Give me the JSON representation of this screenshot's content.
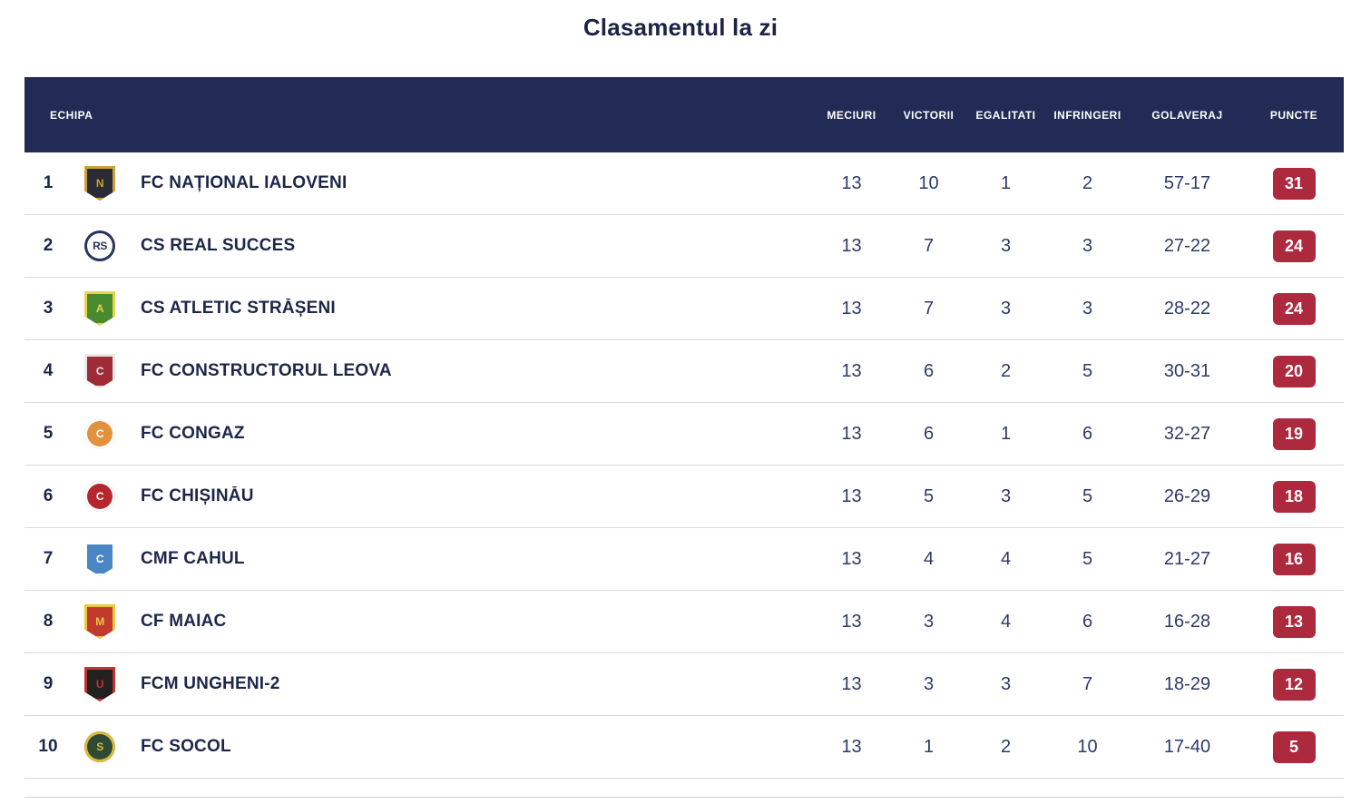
{
  "title": "Clasamentul la zi",
  "colors": {
    "header_bg": "#212b55",
    "badge_bg": "#ad2a3e",
    "title_color": "#1b2444",
    "team_text": "#1c2749",
    "stat_text": "#2c3a66",
    "row_border": "#d9d9d9"
  },
  "table": {
    "headers": [
      "ECHIPA",
      "MECIURI",
      "VICTORII",
      "EGALITATI",
      "INFRINGERI",
      "GOLAVERAJ",
      "PUNCTE"
    ],
    "rows": [
      {
        "pos": "1",
        "team": "FC NAȚIONAL IALOVENI",
        "meciuri": "13",
        "victorii": "10",
        "egalitati": "1",
        "infringeri": "2",
        "golaveraj": "57-17",
        "puncte": "31",
        "crest": {
          "shape": "shield",
          "primary": "#2b2b33",
          "secondary": "#c9a23c",
          "initial": "N"
        }
      },
      {
        "pos": "2",
        "team": "CS REAL SUCCES",
        "meciuri": "13",
        "victorii": "7",
        "egalitati": "3",
        "infringeri": "3",
        "golaveraj": "27-22",
        "puncte": "24",
        "crest": {
          "shape": "circle",
          "primary": "#ffffff",
          "secondary": "#2a3460",
          "initial": "RS"
        }
      },
      {
        "pos": "3",
        "team": "CS ATLETIC STRĂȘENI",
        "meciuri": "13",
        "victorii": "7",
        "egalitati": "3",
        "infringeri": "3",
        "golaveraj": "28-22",
        "puncte": "24",
        "crest": {
          "shape": "shield",
          "primary": "#4a8a2e",
          "secondary": "#e6d44a",
          "initial": "A"
        }
      },
      {
        "pos": "4",
        "team": "FC CONSTRUCTORUL LEOVA",
        "meciuri": "13",
        "victorii": "6",
        "egalitati": "2",
        "infringeri": "5",
        "golaveraj": "30-31",
        "puncte": "20",
        "crest": {
          "shape": "shield",
          "primary": "#9e2b35",
          "secondary": "#e8e8e8",
          "initial": "C"
        }
      },
      {
        "pos": "5",
        "team": "FC CONGAZ",
        "meciuri": "13",
        "victorii": "6",
        "egalitati": "1",
        "infringeri": "6",
        "golaveraj": "32-27",
        "puncte": "19",
        "crest": {
          "shape": "circle",
          "primary": "#e2913f",
          "secondary": "#ffffff",
          "initial": "C"
        }
      },
      {
        "pos": "6",
        "team": "FC CHIȘINĂU",
        "meciuri": "13",
        "victorii": "5",
        "egalitati": "3",
        "infringeri": "5",
        "golaveraj": "26-29",
        "puncte": "18",
        "crest": {
          "shape": "circle",
          "primary": "#b5272d",
          "secondary": "#ffffff",
          "initial": "C"
        }
      },
      {
        "pos": "7",
        "team": "CMF CAHUL",
        "meciuri": "13",
        "victorii": "4",
        "egalitati": "4",
        "infringeri": "5",
        "golaveraj": "21-27",
        "puncte": "16",
        "crest": {
          "shape": "shield",
          "primary": "#4b86c4",
          "secondary": "#ffffff",
          "initial": "C"
        }
      },
      {
        "pos": "8",
        "team": "CF MAIAC",
        "meciuri": "13",
        "victorii": "3",
        "egalitati": "4",
        "infringeri": "6",
        "golaveraj": "16-28",
        "puncte": "13",
        "crest": {
          "shape": "shield",
          "primary": "#c23a2c",
          "secondary": "#ecc83f",
          "initial": "M"
        }
      },
      {
        "pos": "9",
        "team": "FCM UNGHENI-2",
        "meciuri": "13",
        "victorii": "3",
        "egalitati": "3",
        "infringeri": "7",
        "golaveraj": "18-29",
        "puncte": "12",
        "crest": {
          "shape": "shield",
          "primary": "#23211f",
          "secondary": "#c23430",
          "initial": "U"
        }
      },
      {
        "pos": "10",
        "team": "FC SOCOL",
        "meciuri": "13",
        "victorii": "1",
        "egalitati": "2",
        "infringeri": "10",
        "golaveraj": "17-40",
        "puncte": "5",
        "crest": {
          "shape": "circle",
          "primary": "#2e4a35",
          "secondary": "#ddba3e",
          "initial": "S"
        }
      }
    ]
  }
}
